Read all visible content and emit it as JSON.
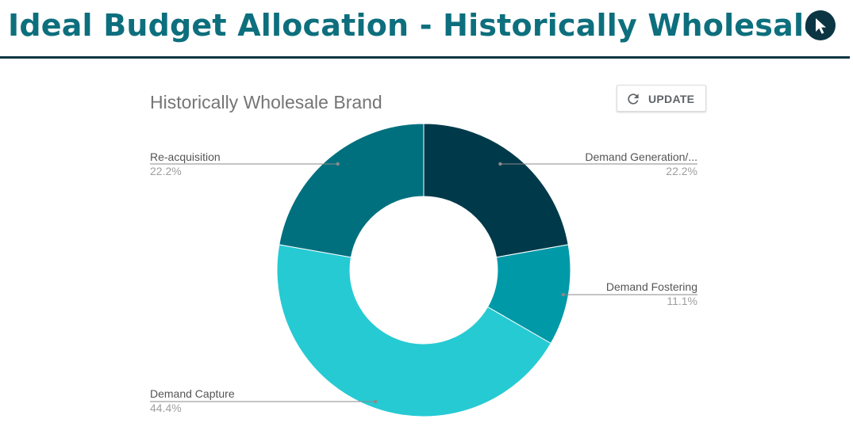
{
  "page": {
    "title": "Ideal Budget Allocation - Historically Wholesale",
    "pointer_icon": "cursor-arrow-icon"
  },
  "toolbar": {
    "update_label": "UPDATE",
    "update_icon": "refresh-icon"
  },
  "chart_data": {
    "type": "pie",
    "donut": true,
    "title": "Historically Wholesale Brand",
    "legend": "labels outside slices with leader lines",
    "slices": [
      {
        "label": "Demand Generation/...",
        "percent_label": "22.2%",
        "value": 22.2,
        "color": "#003a4a"
      },
      {
        "label": "Demand Fostering",
        "percent_label": "11.1%",
        "value": 11.1,
        "color": "#0099a8"
      },
      {
        "label": "Demand Capture",
        "percent_label": "44.4%",
        "value": 44.4,
        "color": "#26cad3"
      },
      {
        "label": "Re-acquisition",
        "percent_label": "22.2%",
        "value": 22.2,
        "color": "#00707f"
      }
    ]
  },
  "colors": {
    "title": "#0d6f7d",
    "rule": "#0c3543",
    "label_text": "#555555",
    "percent_text": "#9e9e9e",
    "leader_line": "#8a8a8a"
  }
}
